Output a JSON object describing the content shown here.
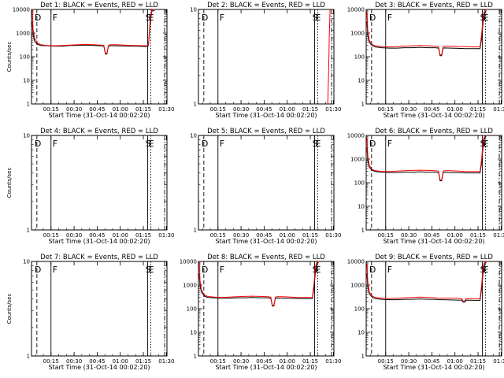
{
  "chart_data": [
    {
      "title": "Det 1:  BLACK = Events, RED = LLD",
      "type": "line",
      "empty": false,
      "ylim": [
        1,
        10000
      ],
      "yscale": "log",
      "ylabel": "Counts/sec",
      "xlabel": "Start Time (31-Oct-14 00:02:20)",
      "xticks": [
        "00:15",
        "00:30",
        "00:45",
        "01:00",
        "01:15",
        "01:30"
      ],
      "yticks": [
        "1",
        "10",
        "100",
        "1000",
        "10000"
      ],
      "flags": [
        "D",
        "F",
        "S",
        "E"
      ],
      "series": [
        {
          "color": "#000000",
          "x": [
            0.5,
            1,
            2,
            4,
            6,
            10,
            15,
            20,
            25,
            30,
            35,
            40,
            45,
            47,
            48,
            49,
            50,
            51,
            55,
            60,
            65,
            70,
            75,
            76,
            77,
            78,
            79,
            80
          ],
          "y": [
            3000,
            900,
            450,
            330,
            300,
            290,
            280,
            280,
            300,
            300,
            310,
            300,
            290,
            280,
            130,
            130,
            280,
            290,
            290,
            285,
            280,
            275,
            270,
            300,
            2000,
            8000,
            9000,
            9000
          ]
        },
        {
          "color": "#ff0000",
          "x": [
            0.5,
            1,
            2,
            4,
            6,
            10,
            15,
            20,
            25,
            30,
            35,
            40,
            45,
            47,
            48,
            49,
            50,
            51,
            55,
            60,
            65,
            70,
            75,
            76,
            77,
            78,
            79,
            80
          ],
          "y": [
            9000,
            1500,
            600,
            380,
            320,
            300,
            290,
            300,
            310,
            320,
            330,
            320,
            310,
            300,
            140,
            140,
            300,
            320,
            320,
            310,
            300,
            295,
            290,
            320,
            3000,
            9500,
            9800,
            9800
          ]
        }
      ]
    },
    {
      "title": "Det 2:  BLACK = Events, RED = LLD",
      "type": "line",
      "empty": false,
      "ylim": [
        1,
        10
      ],
      "yscale": "log",
      "ylabel": "",
      "xlabel": "Start Time (31-Oct-14 00:02:20)",
      "xticks": [
        "00:15",
        "00:30",
        "00:45",
        "01:00",
        "01:15",
        "01:30"
      ],
      "yticks": [
        "1",
        "10"
      ],
      "flags": [
        "D",
        "F",
        "S",
        "E"
      ],
      "series": [
        {
          "color": "#ff0000",
          "x": [
            84,
            84.5,
            85,
            85.5
          ],
          "y": [
            1,
            2,
            5,
            10
          ]
        }
      ]
    },
    {
      "title": "Det 3:  BLACK = Events, RED = LLD",
      "type": "line",
      "empty": false,
      "ylim": [
        1,
        10000
      ],
      "yscale": "log",
      "ylabel": "",
      "xlabel": "Start Time (31-Oct-14 00:02:20)",
      "xticks": [
        "00:15",
        "00:30",
        "00:45",
        "01:00",
        "01:15",
        "01:30"
      ],
      "yticks": [
        "1",
        "10",
        "100",
        "1000",
        "10000"
      ],
      "flags": [
        "D",
        "F",
        "S",
        "E"
      ],
      "series": [
        {
          "color": "#000000",
          "x": [
            0.5,
            1,
            2,
            4,
            6,
            10,
            15,
            20,
            25,
            30,
            35,
            40,
            45,
            47,
            48,
            49,
            50,
            51,
            55,
            60,
            65,
            70,
            74,
            75,
            76,
            77,
            78
          ],
          "y": [
            3000,
            800,
            400,
            290,
            260,
            240,
            230,
            230,
            240,
            240,
            250,
            240,
            240,
            230,
            110,
            110,
            230,
            235,
            230,
            225,
            220,
            220,
            220,
            600,
            3000,
            7000,
            9000
          ]
        },
        {
          "color": "#ff0000",
          "x": [
            0.5,
            1,
            2,
            4,
            6,
            10,
            15,
            20,
            25,
            30,
            35,
            40,
            45,
            47,
            48,
            49,
            50,
            51,
            55,
            60,
            65,
            70,
            74,
            75,
            76,
            77,
            78
          ],
          "y": [
            8000,
            1300,
            500,
            320,
            290,
            270,
            260,
            270,
            280,
            290,
            300,
            290,
            280,
            270,
            120,
            120,
            270,
            280,
            280,
            270,
            265,
            260,
            265,
            900,
            5000,
            9500,
            9800
          ]
        }
      ]
    },
    {
      "title": "Det 4:  BLACK = Events, RED = LLD",
      "type": "line",
      "empty": true,
      "ylim": [
        1,
        10
      ],
      "yscale": "log",
      "ylabel": "Counts/sec",
      "xlabel": "Start Time (31-Oct-14 00:02:20)",
      "xticks": [
        "00:15",
        "00:30",
        "00:45",
        "01:00",
        "01:15",
        "01:30"
      ],
      "yticks": [
        "1",
        "10"
      ],
      "flags": [
        "D",
        "F",
        "S",
        "E"
      ],
      "series": []
    },
    {
      "title": "Det 5:  BLACK = Events, RED = LLD",
      "type": "line",
      "empty": true,
      "ylim": [
        1,
        10
      ],
      "yscale": "log",
      "ylabel": "",
      "xlabel": "Start Time (31-Oct-14 00:02:20)",
      "xticks": [
        "00:15",
        "00:30",
        "00:45",
        "01:00",
        "01:15",
        "01:30"
      ],
      "yticks": [
        "1",
        "10"
      ],
      "flags": [
        "D",
        "F",
        "S",
        "E"
      ],
      "series": []
    },
    {
      "title": "Det 6:  BLACK = Events, RED = LLD",
      "type": "line",
      "empty": false,
      "ylim": [
        1,
        10000
      ],
      "yscale": "log",
      "ylabel": "",
      "xlabel": "Start Time (31-Oct-14 00:02:20)",
      "xticks": [
        "00:15",
        "00:30",
        "00:45",
        "01:00",
        "01:15",
        "01:30"
      ],
      "yticks": [
        "1",
        "10",
        "100",
        "1000",
        "10000"
      ],
      "flags": [
        "D",
        "F",
        "S",
        "E"
      ],
      "series": [
        {
          "color": "#000000",
          "x": [
            0.5,
            1,
            2,
            4,
            6,
            10,
            15,
            20,
            25,
            30,
            35,
            40,
            45,
            47,
            48,
            49,
            50,
            51,
            55,
            60,
            65,
            70,
            74,
            75,
            76,
            77,
            78
          ],
          "y": [
            3000,
            900,
            450,
            330,
            300,
            280,
            270,
            270,
            280,
            280,
            290,
            280,
            280,
            270,
            120,
            120,
            270,
            275,
            270,
            265,
            260,
            260,
            260,
            700,
            3500,
            8000,
            9000
          ]
        },
        {
          "color": "#ff0000",
          "x": [
            0.5,
            1,
            2,
            4,
            6,
            10,
            15,
            20,
            25,
            30,
            35,
            40,
            45,
            47,
            48,
            49,
            50,
            51,
            55,
            60,
            65,
            70,
            74,
            75,
            76,
            77,
            78
          ],
          "y": [
            8000,
            1400,
            550,
            360,
            320,
            300,
            300,
            310,
            320,
            330,
            340,
            330,
            320,
            310,
            130,
            130,
            310,
            320,
            320,
            310,
            300,
            300,
            300,
            1000,
            6000,
            9500,
            9800
          ]
        }
      ]
    },
    {
      "title": "Det 7:  BLACK = Events, RED = LLD",
      "type": "line",
      "empty": true,
      "ylim": [
        1,
        10
      ],
      "yscale": "log",
      "ylabel": "Counts/sec",
      "xlabel": "Start Time (31-Oct-14 00:02:20)",
      "xticks": [
        "00:15",
        "00:30",
        "00:45",
        "01:00",
        "01:15",
        "01:30"
      ],
      "yticks": [
        "1",
        "10"
      ],
      "flags": [
        "D",
        "F",
        "S",
        "E"
      ],
      "series": []
    },
    {
      "title": "Det 8:  BLACK = Events, RED = LLD",
      "type": "line",
      "empty": false,
      "ylim": [
        1,
        10000
      ],
      "yscale": "log",
      "ylabel": "",
      "xlabel": "Start Time (31-Oct-14 00:02:20)",
      "xticks": [
        "00:15",
        "00:30",
        "00:45",
        "01:00",
        "01:15",
        "01:30"
      ],
      "yticks": [
        "1",
        "10",
        "100",
        "1000",
        "10000"
      ],
      "flags": [
        "D",
        "F",
        "S",
        "E"
      ],
      "series": [
        {
          "color": "#000000",
          "x": [
            0.5,
            1,
            2,
            4,
            6,
            10,
            15,
            20,
            25,
            30,
            35,
            40,
            45,
            47,
            48,
            49,
            50,
            51,
            55,
            60,
            65,
            70,
            74,
            75,
            76,
            77,
            78
          ],
          "y": [
            3000,
            1000,
            500,
            340,
            300,
            290,
            280,
            280,
            290,
            290,
            300,
            290,
            290,
            280,
            130,
            130,
            280,
            285,
            280,
            275,
            270,
            270,
            270,
            700,
            3500,
            8000,
            9000
          ]
        },
        {
          "color": "#ff0000",
          "x": [
            0.5,
            1,
            2,
            4,
            6,
            10,
            15,
            20,
            25,
            30,
            35,
            40,
            45,
            47,
            48,
            49,
            50,
            51,
            55,
            60,
            65,
            70,
            74,
            75,
            76,
            77,
            78
          ],
          "y": [
            9000,
            1500,
            600,
            380,
            330,
            310,
            300,
            310,
            320,
            330,
            340,
            330,
            320,
            310,
            140,
            140,
            310,
            320,
            320,
            310,
            300,
            300,
            300,
            1000,
            6000,
            9500,
            9800
          ]
        }
      ]
    },
    {
      "title": "Det 9:  BLACK = Events, RED = LLD",
      "type": "line",
      "empty": false,
      "ylim": [
        1,
        10000
      ],
      "yscale": "log",
      "ylabel": "",
      "xlabel": "Start Time (31-Oct-14 00:02:20)",
      "xticks": [
        "00:15",
        "00:30",
        "00:45",
        "01:00",
        "01:15",
        "01:30"
      ],
      "yticks": [
        "1",
        "10",
        "100",
        "1000",
        "10000"
      ],
      "flags": [
        "D",
        "F",
        "S",
        "E"
      ],
      "series": [
        {
          "color": "#000000",
          "x": [
            0.5,
            1,
            2,
            4,
            6,
            10,
            15,
            20,
            25,
            30,
            35,
            40,
            45,
            47,
            50,
            55,
            60,
            62,
            63,
            64,
            65,
            70,
            74,
            75,
            76,
            77,
            78
          ],
          "y": [
            3000,
            900,
            420,
            300,
            270,
            250,
            240,
            240,
            250,
            250,
            260,
            250,
            250,
            240,
            240,
            235,
            230,
            230,
            190,
            190,
            230,
            225,
            225,
            700,
            3500,
            8000,
            9000
          ]
        },
        {
          "color": "#ff0000",
          "x": [
            0.5,
            1,
            2,
            4,
            6,
            10,
            15,
            20,
            25,
            30,
            35,
            40,
            45,
            47,
            50,
            55,
            60,
            62,
            63,
            64,
            65,
            70,
            74,
            75,
            76,
            77,
            78
          ],
          "y": [
            8000,
            1400,
            520,
            340,
            300,
            280,
            270,
            280,
            290,
            300,
            310,
            300,
            290,
            280,
            280,
            280,
            275,
            270,
            210,
            210,
            270,
            265,
            265,
            1000,
            6000,
            9500,
            9800
          ]
        }
      ]
    }
  ]
}
